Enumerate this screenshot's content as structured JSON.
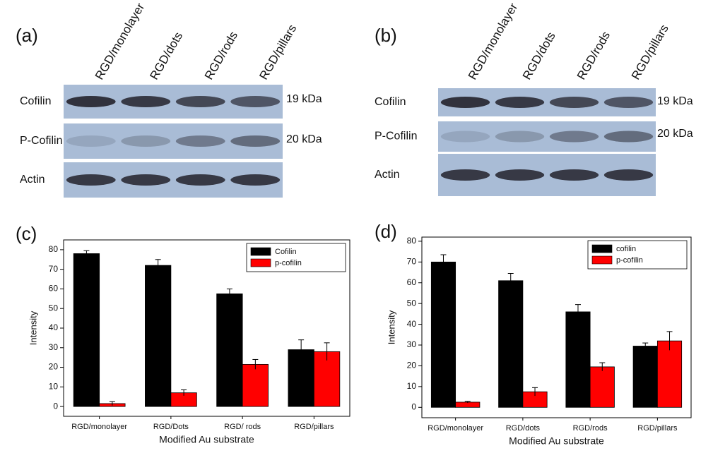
{
  "blots": [
    {
      "label": "(a)",
      "lanes": [
        "RGD/monolayer",
        "RGD/dots",
        "RGD/rods",
        "RGD/pillars"
      ],
      "rows": [
        {
          "name": "Cofilin",
          "kda": "19 kDa"
        },
        {
          "name": "P-Cofilin",
          "kda": "20 kDa"
        },
        {
          "name": "Actin"
        }
      ]
    },
    {
      "label": "(b)",
      "lanes": [
        "RGD/monolayer",
        "RGD/dots",
        "RGD/rods",
        "RGD/pillars"
      ],
      "rows": [
        {
          "name": "Cofilin",
          "kda": "19 kDa"
        },
        {
          "name": "P-Cofilin",
          "kda": "20 kDa"
        },
        {
          "name": "Actin"
        }
      ]
    }
  ],
  "chart_data": [
    {
      "type": "bar",
      "panel_label": "(c)",
      "categories": [
        "RGD/monolayer",
        "RGD/Dots",
        "RGD/ rods",
        "RGD/pillars"
      ],
      "x_label": "Modified Au substrate",
      "y_label": "Intensity",
      "ylim": [
        -5,
        85
      ],
      "yticks": [
        0,
        10,
        20,
        30,
        40,
        50,
        60,
        70,
        80
      ],
      "legend": "upper right",
      "series": [
        {
          "name": "Cofilin",
          "color": "#000000",
          "values": [
            78,
            72,
            57.5,
            29
          ],
          "errors": [
            1.5,
            3,
            2.5,
            5
          ]
        },
        {
          "name": "p-cofilin",
          "color": "#ff0000",
          "values": [
            1.5,
            7,
            21.5,
            28
          ],
          "errors": [
            1,
            1.5,
            2.5,
            4.5
          ]
        }
      ]
    },
    {
      "type": "bar",
      "panel_label": "(d)",
      "categories": [
        "RGD/monolayer",
        "RGD/dots",
        "RGD/rods",
        "RGD/pillars"
      ],
      "x_label": "Modified Au substrate",
      "y_label": "Intensity",
      "ylim": [
        -5,
        82
      ],
      "yticks": [
        0,
        10,
        20,
        30,
        40,
        50,
        60,
        70,
        80
      ],
      "legend": "upper right",
      "series": [
        {
          "name": "cofilin",
          "color": "#000000",
          "values": [
            70,
            61,
            46,
            29.5
          ],
          "errors": [
            3.5,
            3.5,
            3.5,
            1.5
          ]
        },
        {
          "name": "p-cofilin",
          "color": "#ff0000",
          "values": [
            2.5,
            7.5,
            19.5,
            32
          ],
          "errors": [
            0.4,
            2,
            2,
            4.5
          ]
        }
      ]
    }
  ]
}
